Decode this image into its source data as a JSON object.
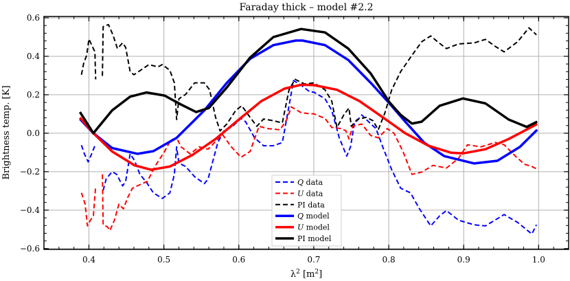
{
  "chart_data": {
    "type": "line",
    "title": "Faraday thick – model #2.2",
    "xlabel_main": "λ",
    "xlabel_sup": "2",
    "xlabel_unit": " [m",
    "xlabel_unit_sup": "2",
    "xlabel_close": "]",
    "ylabel": "Brightness temp. [K]",
    "xlim": [
      0.34,
      1.04
    ],
    "ylim": [
      -0.604,
      0.607
    ],
    "grid": true,
    "legend_position": "lower center",
    "xticks": [
      0.4,
      0.5,
      0.6,
      0.7,
      0.8,
      0.9,
      1.0
    ],
    "xtick_labels": [
      "0.4",
      "0.5",
      "0.6",
      "0.7",
      "0.8",
      "0.9",
      "1.0"
    ],
    "yticks": [
      -0.6,
      -0.4,
      -0.2,
      0.0,
      0.2,
      0.4,
      0.6
    ],
    "ytick_labels": [
      "−0.6",
      "−0.4",
      "−0.2",
      "0.0",
      "0.2",
      "0.4",
      "0.6"
    ],
    "series": [
      {
        "name": "Q data",
        "legend_var": "Q",
        "legend_text": " data",
        "color": "#0000ff",
        "style": "dashed",
        "width": 2,
        "points": [
          [
            0.39,
            -0.062
          ],
          [
            0.394,
            -0.107
          ],
          [
            0.399,
            -0.149
          ],
          [
            0.405,
            -0.095
          ],
          [
            0.409,
            -0.054
          ],
          null,
          [
            0.419,
            -0.298
          ],
          [
            0.423,
            -0.238
          ],
          [
            0.431,
            -0.2
          ],
          [
            0.437,
            -0.214
          ],
          [
            0.445,
            -0.274
          ],
          [
            0.449,
            -0.25
          ],
          [
            0.455,
            -0.107
          ],
          [
            0.461,
            -0.143
          ],
          [
            0.468,
            -0.214
          ],
          [
            0.477,
            -0.256
          ],
          [
            0.486,
            -0.31
          ],
          [
            0.498,
            -0.339
          ],
          [
            0.508,
            -0.31
          ],
          [
            0.514,
            -0.214
          ],
          [
            0.517,
            -0.071
          ],
          [
            0.52,
            -0.155
          ],
          [
            0.529,
            -0.173
          ],
          [
            0.541,
            -0.226
          ],
          [
            0.554,
            -0.262
          ],
          [
            0.559,
            -0.238
          ],
          [
            0.572,
            -0.048
          ],
          [
            0.581,
            0.018
          ],
          [
            0.59,
            0.03
          ],
          [
            0.603,
            0.077
          ],
          [
            0.609,
            0.06
          ],
          [
            0.621,
            -0.024
          ],
          [
            0.633,
            -0.065
          ],
          [
            0.646,
            -0.065
          ],
          [
            0.658,
            -0.048
          ],
          [
            0.667,
            0.143
          ],
          [
            0.673,
            0.274
          ],
          [
            0.683,
            0.25
          ],
          [
            0.695,
            0.214
          ],
          [
            0.7,
            0.214
          ],
          [
            0.715,
            0.179
          ],
          [
            0.724,
            0.119
          ],
          [
            0.734,
            -0.024
          ],
          [
            0.744,
            -0.119
          ],
          [
            0.749,
            -0.071
          ],
          [
            0.754,
            0.048
          ],
          [
            0.764,
            0.095
          ],
          [
            0.773,
            0.06
          ],
          [
            0.783,
            0.024
          ],
          [
            0.792,
            -0.071
          ],
          [
            0.804,
            -0.19
          ],
          [
            0.816,
            -0.286
          ],
          [
            0.829,
            -0.31
          ],
          [
            0.841,
            -0.393
          ],
          [
            0.856,
            -0.482
          ],
          [
            0.868,
            -0.429
          ],
          [
            0.877,
            -0.402
          ],
          [
            0.893,
            -0.452
          ],
          [
            0.914,
            -0.476
          ],
          [
            0.929,
            -0.482
          ],
          [
            0.954,
            -0.423
          ],
          [
            0.972,
            -0.464
          ],
          [
            0.991,
            -0.524
          ],
          [
            0.997,
            -0.476
          ]
        ]
      },
      {
        "name": "U data",
        "legend_var": "U",
        "legend_text": " data",
        "color": "#ff0000",
        "style": "dashed",
        "width": 2,
        "points": [
          [
            0.39,
            -0.31
          ],
          [
            0.395,
            -0.369
          ],
          [
            0.398,
            -0.482
          ],
          [
            0.402,
            -0.452
          ],
          [
            0.406,
            -0.429
          ],
          [
            0.409,
            -0.274
          ],
          null,
          [
            0.418,
            -0.214
          ],
          [
            0.419,
            -0.476
          ],
          [
            0.425,
            -0.488
          ],
          [
            0.428,
            -0.506
          ],
          [
            0.434,
            -0.452
          ],
          [
            0.44,
            -0.369
          ],
          [
            0.446,
            -0.393
          ],
          [
            0.452,
            -0.333
          ],
          [
            0.458,
            -0.286
          ],
          [
            0.471,
            -0.262
          ],
          [
            0.478,
            -0.25
          ],
          [
            0.489,
            -0.167
          ],
          [
            0.501,
            -0.095
          ],
          [
            0.509,
            -0.036
          ],
          [
            0.517,
            -0.024
          ],
          [
            0.523,
            -0.071
          ],
          [
            0.535,
            -0.107
          ],
          [
            0.547,
            -0.071
          ],
          [
            0.559,
            -0.083
          ],
          [
            0.578,
            -0.006
          ],
          [
            0.59,
            -0.071
          ],
          [
            0.603,
            -0.125
          ],
          [
            0.615,
            -0.095
          ],
          [
            0.627,
            0.036
          ],
          [
            0.639,
            0.024
          ],
          [
            0.655,
            0.018
          ],
          [
            0.664,
            0.071
          ],
          [
            0.67,
            0.137
          ],
          [
            0.683,
            0.107
          ],
          [
            0.695,
            0.101
          ],
          [
            0.7,
            0.101
          ],
          [
            0.715,
            0.077
          ],
          [
            0.724,
            0.03
          ],
          [
            0.737,
            0.024
          ],
          [
            0.743,
            0.012
          ],
          [
            0.747,
            -0.03
          ],
          [
            0.752,
            0.036
          ],
          [
            0.764,
            0.048
          ],
          [
            0.776,
            -0.012
          ],
          [
            0.786,
            -0.024
          ],
          [
            0.798,
            0.024
          ],
          [
            0.807,
            0.0
          ],
          [
            0.819,
            -0.095
          ],
          [
            0.831,
            -0.214
          ],
          [
            0.844,
            -0.202
          ],
          [
            0.859,
            -0.167
          ],
          [
            0.877,
            -0.181
          ],
          [
            0.893,
            -0.131
          ],
          [
            0.905,
            -0.06
          ],
          [
            0.923,
            -0.071
          ],
          [
            0.942,
            -0.048
          ],
          [
            0.954,
            -0.06
          ],
          [
            0.969,
            -0.119
          ],
          [
            0.981,
            -0.161
          ],
          [
            0.991,
            -0.173
          ],
          [
            0.997,
            -0.185
          ]
        ]
      },
      {
        "name": "PI data",
        "legend_var": "",
        "legend_text": "PI data",
        "color": "#000000",
        "style": "dashed",
        "width": 2,
        "points": [
          [
            0.39,
            0.304
          ],
          [
            0.393,
            0.363
          ],
          [
            0.397,
            0.405
          ],
          [
            0.4,
            0.49
          ],
          [
            0.403,
            0.464
          ],
          [
            0.408,
            0.423
          ],
          [
            0.409,
            0.28
          ],
          null,
          [
            0.418,
            0.298
          ],
          [
            0.419,
            0.554
          ],
          [
            0.426,
            0.565
          ],
          [
            0.432,
            0.512
          ],
          [
            0.438,
            0.44
          ],
          [
            0.445,
            0.47
          ],
          [
            0.449,
            0.446
          ],
          [
            0.455,
            0.321
          ],
          [
            0.46,
            0.304
          ],
          [
            0.471,
            0.333
          ],
          [
            0.48,
            0.357
          ],
          [
            0.492,
            0.345
          ],
          [
            0.498,
            0.357
          ],
          [
            0.508,
            0.327
          ],
          [
            0.514,
            0.262
          ],
          [
            0.517,
            0.071
          ],
          [
            0.52,
            0.179
          ],
          [
            0.529,
            0.202
          ],
          [
            0.541,
            0.262
          ],
          [
            0.554,
            0.262
          ],
          [
            0.561,
            0.226
          ],
          [
            0.569,
            0.083
          ],
          [
            0.575,
            0.012
          ],
          [
            0.584,
            0.048
          ],
          [
            0.596,
            0.119
          ],
          [
            0.604,
            0.143
          ],
          [
            0.615,
            0.083
          ],
          [
            0.624,
            0.036
          ],
          [
            0.633,
            0.074
          ],
          [
            0.646,
            0.065
          ],
          [
            0.658,
            0.054
          ],
          [
            0.667,
            0.226
          ],
          [
            0.675,
            0.28
          ],
          [
            0.688,
            0.256
          ],
          [
            0.7,
            0.262
          ],
          [
            0.715,
            0.226
          ],
          [
            0.724,
            0.167
          ],
          [
            0.731,
            0.03
          ],
          [
            0.74,
            0.095
          ],
          [
            0.747,
            0.131
          ],
          [
            0.75,
            0.036
          ],
          [
            0.758,
            0.071
          ],
          [
            0.77,
            0.083
          ],
          [
            0.779,
            0.065
          ],
          [
            0.786,
            0.018
          ],
          [
            0.795,
            0.107
          ],
          [
            0.804,
            0.226
          ],
          [
            0.816,
            0.321
          ],
          [
            0.831,
            0.405
          ],
          [
            0.844,
            0.476
          ],
          [
            0.856,
            0.506
          ],
          [
            0.865,
            0.476
          ],
          [
            0.877,
            0.44
          ],
          [
            0.893,
            0.464
          ],
          [
            0.914,
            0.47
          ],
          [
            0.929,
            0.488
          ],
          [
            0.942,
            0.452
          ],
          [
            0.954,
            0.423
          ],
          [
            0.972,
            0.476
          ],
          [
            0.987,
            0.548
          ],
          [
            0.997,
            0.512
          ]
        ]
      },
      {
        "name": "Q model",
        "legend_var": "Q",
        "legend_text": " model",
        "color": "#0000ff",
        "style": "solid",
        "width": 3.5,
        "points": [
          [
            0.388,
            0.074
          ],
          [
            0.406,
            0.0
          ],
          [
            0.431,
            -0.077
          ],
          [
            0.465,
            -0.107
          ],
          [
            0.486,
            -0.093
          ],
          [
            0.517,
            -0.024
          ],
          [
            0.554,
            0.119
          ],
          [
            0.584,
            0.262
          ],
          [
            0.615,
            0.387
          ],
          [
            0.646,
            0.458
          ],
          [
            0.676,
            0.482
          ],
          [
            0.685,
            0.482
          ],
          [
            0.715,
            0.458
          ],
          [
            0.746,
            0.381
          ],
          [
            0.776,
            0.262
          ],
          [
            0.801,
            0.155
          ],
          [
            0.822,
            0.06
          ],
          [
            0.847,
            -0.048
          ],
          [
            0.874,
            -0.119
          ],
          [
            0.914,
            -0.157
          ],
          [
            0.945,
            -0.143
          ],
          [
            0.975,
            -0.071
          ],
          [
            0.998,
            0.018
          ]
        ]
      },
      {
        "name": "U model",
        "legend_var": "U",
        "legend_text": " model",
        "color": "#ff0000",
        "style": "solid",
        "width": 3.5,
        "points": [
          [
            0.388,
            0.081
          ],
          [
            0.406,
            0.0
          ],
          [
            0.431,
            -0.095
          ],
          [
            0.461,
            -0.167
          ],
          [
            0.483,
            -0.19
          ],
          [
            0.508,
            -0.173
          ],
          [
            0.538,
            -0.113
          ],
          [
            0.569,
            -0.03
          ],
          [
            0.6,
            0.071
          ],
          [
            0.63,
            0.167
          ],
          [
            0.661,
            0.232
          ],
          [
            0.683,
            0.252
          ],
          [
            0.7,
            0.25
          ],
          [
            0.731,
            0.226
          ],
          [
            0.761,
            0.167
          ],
          [
            0.792,
            0.083
          ],
          [
            0.822,
            0.0
          ],
          [
            0.853,
            -0.065
          ],
          [
            0.883,
            -0.101
          ],
          [
            0.899,
            -0.105
          ],
          [
            0.929,
            -0.083
          ],
          [
            0.96,
            -0.03
          ],
          [
            0.998,
            0.048
          ]
        ]
      },
      {
        "name": "PI model",
        "legend_var": "",
        "legend_text": "PI model",
        "color": "#000000",
        "style": "solid",
        "width": 3.5,
        "points": [
          [
            0.388,
            0.11
          ],
          [
            0.406,
            0.0
          ],
          [
            0.431,
            0.119
          ],
          [
            0.455,
            0.19
          ],
          [
            0.477,
            0.212
          ],
          [
            0.501,
            0.196
          ],
          [
            0.523,
            0.149
          ],
          [
            0.543,
            0.11
          ],
          [
            0.56,
            0.131
          ],
          [
            0.584,
            0.238
          ],
          [
            0.615,
            0.393
          ],
          [
            0.646,
            0.5
          ],
          [
            0.683,
            0.542
          ],
          [
            0.715,
            0.524
          ],
          [
            0.746,
            0.44
          ],
          [
            0.776,
            0.31
          ],
          [
            0.801,
            0.161
          ],
          [
            0.816,
            0.095
          ],
          [
            0.831,
            0.05
          ],
          [
            0.844,
            0.06
          ],
          [
            0.868,
            0.143
          ],
          [
            0.899,
            0.181
          ],
          [
            0.929,
            0.155
          ],
          [
            0.96,
            0.071
          ],
          [
            0.984,
            0.033
          ],
          [
            0.998,
            0.06
          ]
        ]
      }
    ]
  }
}
